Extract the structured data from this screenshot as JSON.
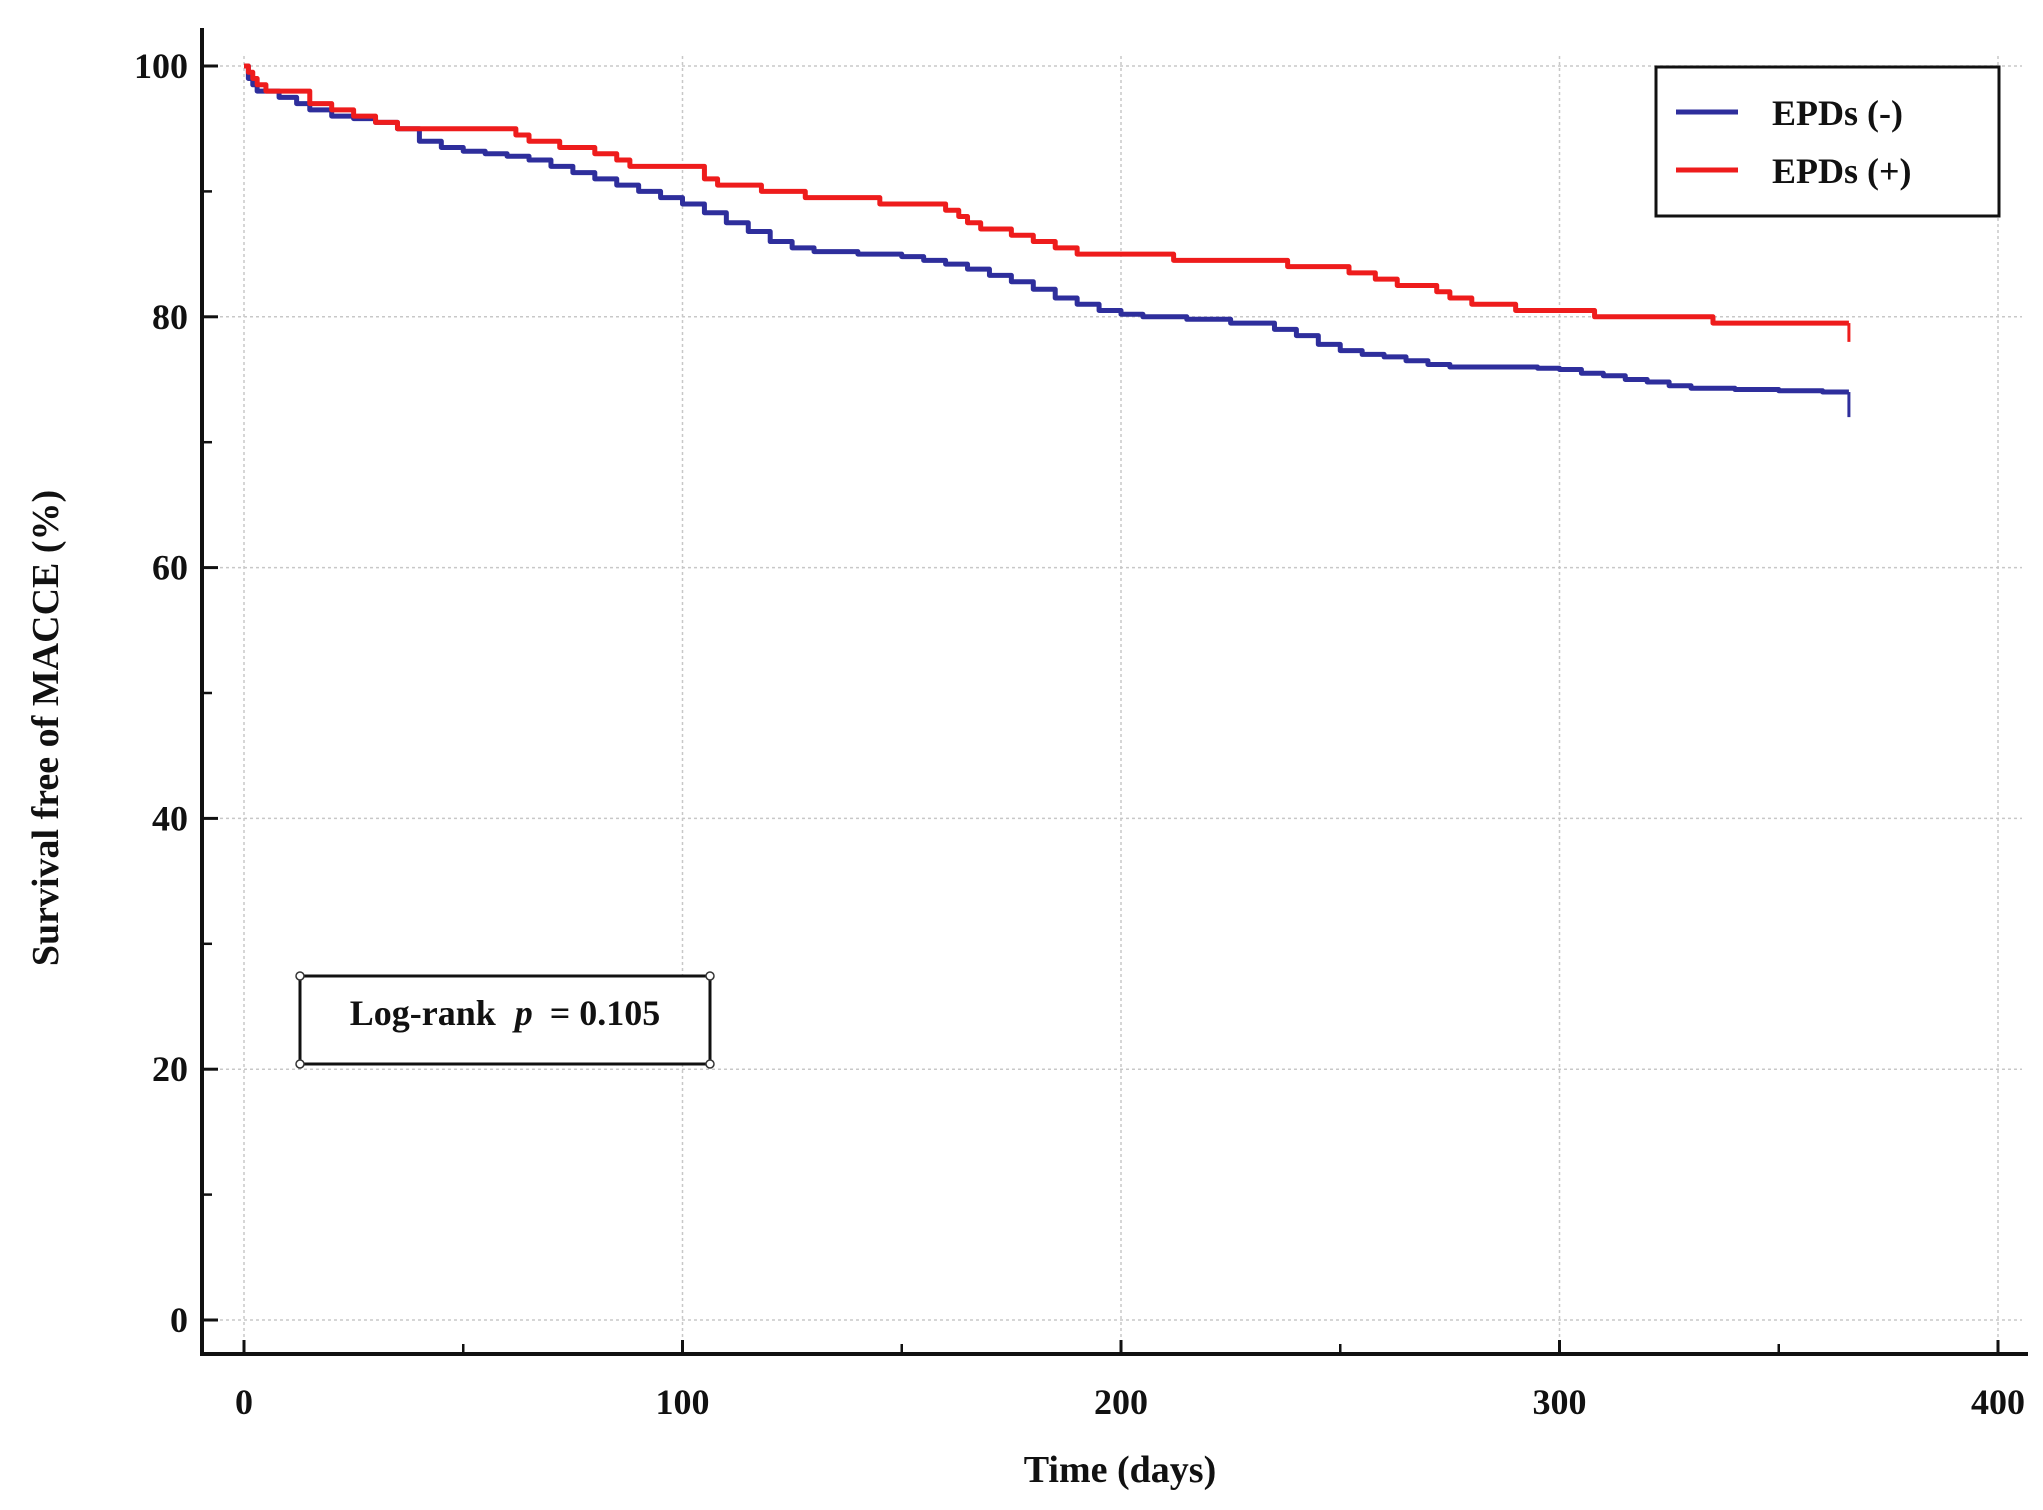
{
  "chart_data": {
    "type": "line",
    "title": "",
    "xlabel": "Time (days)",
    "ylabel": "Survival free of MACCE (%)",
    "xlim": [
      0,
      400
    ],
    "ylim": [
      0,
      100
    ],
    "xticks": [
      0,
      100,
      200,
      300,
      400
    ],
    "xticks_minor": [
      50,
      150,
      250,
      350
    ],
    "yticks": [
      0,
      20,
      40,
      60,
      80,
      100
    ],
    "yticks_minor": [
      10,
      30,
      50,
      70,
      90
    ],
    "grid": true,
    "legend_position": "top-right",
    "annotation": {
      "label": "Log-rank",
      "p_symbol": "p",
      "p_text": "= 0.105"
    },
    "series": [
      {
        "name": "EPDs (-)",
        "color": "#2e2e9c",
        "censor_end": 72,
        "points": [
          [
            0,
            100
          ],
          [
            1,
            99
          ],
          [
            2,
            98.5
          ],
          [
            3,
            98
          ],
          [
            8,
            97.5
          ],
          [
            12,
            97
          ],
          [
            15,
            96.5
          ],
          [
            20,
            96
          ],
          [
            25,
            95.8
          ],
          [
            30,
            95.5
          ],
          [
            35,
            95
          ],
          [
            40,
            94
          ],
          [
            45,
            93.5
          ],
          [
            50,
            93.2
          ],
          [
            55,
            93
          ],
          [
            60,
            92.8
          ],
          [
            65,
            92.5
          ],
          [
            70,
            92
          ],
          [
            75,
            91.5
          ],
          [
            80,
            91
          ],
          [
            85,
            90.5
          ],
          [
            90,
            90
          ],
          [
            95,
            89.5
          ],
          [
            100,
            89
          ],
          [
            105,
            88.3
          ],
          [
            110,
            87.5
          ],
          [
            115,
            86.8
          ],
          [
            120,
            86
          ],
          [
            125,
            85.5
          ],
          [
            130,
            85.2
          ],
          [
            140,
            85
          ],
          [
            150,
            84.8
          ],
          [
            155,
            84.5
          ],
          [
            160,
            84.2
          ],
          [
            165,
            83.8
          ],
          [
            170,
            83.3
          ],
          [
            175,
            82.8
          ],
          [
            180,
            82.2
          ],
          [
            185,
            81.5
          ],
          [
            190,
            81
          ],
          [
            195,
            80.5
          ],
          [
            200,
            80.2
          ],
          [
            205,
            80
          ],
          [
            215,
            79.8
          ],
          [
            225,
            79.5
          ],
          [
            235,
            79
          ],
          [
            240,
            78.5
          ],
          [
            245,
            77.8
          ],
          [
            250,
            77.3
          ],
          [
            255,
            77
          ],
          [
            260,
            76.8
          ],
          [
            265,
            76.5
          ],
          [
            270,
            76.2
          ],
          [
            275,
            76
          ],
          [
            280,
            76
          ],
          [
            290,
            76
          ],
          [
            295,
            75.9
          ],
          [
            300,
            75.8
          ],
          [
            305,
            75.5
          ],
          [
            310,
            75.3
          ],
          [
            315,
            75
          ],
          [
            320,
            74.8
          ],
          [
            325,
            74.5
          ],
          [
            330,
            74.3
          ],
          [
            340,
            74.2
          ],
          [
            350,
            74.1
          ],
          [
            360,
            74
          ],
          [
            366,
            74
          ]
        ]
      },
      {
        "name": "EPDs (+)",
        "color": "#ee1c1c",
        "censor_end": 78,
        "points": [
          [
            0,
            100
          ],
          [
            1,
            99.5
          ],
          [
            2,
            99
          ],
          [
            3,
            98.5
          ],
          [
            5,
            98
          ],
          [
            15,
            98
          ],
          [
            15,
            97
          ],
          [
            20,
            97
          ],
          [
            20,
            96.5
          ],
          [
            25,
            96.5
          ],
          [
            25,
            96
          ],
          [
            30,
            96
          ],
          [
            30,
            95.5
          ],
          [
            35,
            95.5
          ],
          [
            35,
            95
          ],
          [
            60,
            95
          ],
          [
            62,
            94.5
          ],
          [
            65,
            94
          ],
          [
            72,
            94
          ],
          [
            72,
            93.5
          ],
          [
            80,
            93.5
          ],
          [
            80,
            93
          ],
          [
            85,
            93
          ],
          [
            85,
            92.5
          ],
          [
            88,
            92.5
          ],
          [
            88,
            92
          ],
          [
            105,
            92
          ],
          [
            105,
            91
          ],
          [
            108,
            90.5
          ],
          [
            118,
            90.5
          ],
          [
            118,
            90
          ],
          [
            128,
            90
          ],
          [
            128,
            89.5
          ],
          [
            145,
            89.5
          ],
          [
            145,
            89
          ],
          [
            158,
            89
          ],
          [
            160,
            88.5
          ],
          [
            163,
            88
          ],
          [
            165,
            87.5
          ],
          [
            168,
            87
          ],
          [
            175,
            87
          ],
          [
            175,
            86.5
          ],
          [
            180,
            86.5
          ],
          [
            180,
            86
          ],
          [
            185,
            86
          ],
          [
            185,
            85.5
          ],
          [
            190,
            85.5
          ],
          [
            190,
            85
          ],
          [
            210,
            85
          ],
          [
            212,
            84.5
          ],
          [
            235,
            84.5
          ],
          [
            238,
            84
          ],
          [
            250,
            84
          ],
          [
            252,
            83.5
          ],
          [
            255,
            83.5
          ],
          [
            258,
            83
          ],
          [
            263,
            83
          ],
          [
            263,
            82.5
          ],
          [
            272,
            82.5
          ],
          [
            272,
            82
          ],
          [
            275,
            82
          ],
          [
            275,
            81.5
          ],
          [
            280,
            81.5
          ],
          [
            280,
            81
          ],
          [
            290,
            81
          ],
          [
            290,
            80.5
          ],
          [
            308,
            80.5
          ],
          [
            308,
            80
          ],
          [
            335,
            80
          ],
          [
            335,
            79.5
          ],
          [
            366,
            79.5
          ]
        ]
      }
    ]
  }
}
